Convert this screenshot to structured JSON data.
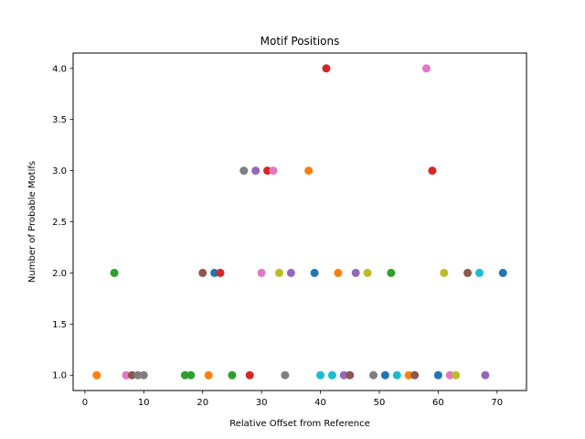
{
  "chart_data": {
    "type": "scatter",
    "title": "Motif Positions",
    "xlabel": "Relative Offset from Reference",
    "ylabel": "Number of Probable Motifs",
    "xlim": [
      -2,
      75
    ],
    "ylim": [
      0.85,
      4.15
    ],
    "xticks": [
      0,
      10,
      20,
      30,
      40,
      50,
      60,
      70
    ],
    "yticks": [
      1.0,
      1.5,
      2.0,
      2.5,
      3.0,
      3.5,
      4.0
    ],
    "ytick_labels": [
      "1.0",
      "1.5",
      "2.0",
      "2.5",
      "3.0",
      "3.5",
      "4.0"
    ],
    "grid": false,
    "legend": "none",
    "points": [
      {
        "x": 2,
        "y": 1,
        "color": "#ff7f0e"
      },
      {
        "x": 5,
        "y": 2,
        "color": "#2ca02c"
      },
      {
        "x": 7,
        "y": 1,
        "color": "#e377c2"
      },
      {
        "x": 8,
        "y": 1,
        "color": "#8c564b"
      },
      {
        "x": 9,
        "y": 1,
        "color": "#7f7f7f"
      },
      {
        "x": 10,
        "y": 1,
        "color": "#7f7f7f"
      },
      {
        "x": 17,
        "y": 1,
        "color": "#2ca02c"
      },
      {
        "x": 18,
        "y": 1,
        "color": "#2ca02c"
      },
      {
        "x": 20,
        "y": 2,
        "color": "#8c564b"
      },
      {
        "x": 21,
        "y": 1,
        "color": "#ff7f0e"
      },
      {
        "x": 22,
        "y": 2,
        "color": "#1f77b4"
      },
      {
        "x": 23,
        "y": 2,
        "color": "#d62728"
      },
      {
        "x": 25,
        "y": 1,
        "color": "#2ca02c"
      },
      {
        "x": 27,
        "y": 3,
        "color": "#7f7f7f"
      },
      {
        "x": 28,
        "y": 1,
        "color": "#d62728"
      },
      {
        "x": 29,
        "y": 3,
        "color": "#9467bd"
      },
      {
        "x": 30,
        "y": 2,
        "color": "#e377c2"
      },
      {
        "x": 31,
        "y": 3,
        "color": "#d62728"
      },
      {
        "x": 32,
        "y": 3,
        "color": "#e377c2"
      },
      {
        "x": 33,
        "y": 2,
        "color": "#bcbd22"
      },
      {
        "x": 34,
        "y": 1,
        "color": "#7f7f7f"
      },
      {
        "x": 35,
        "y": 2,
        "color": "#9467bd"
      },
      {
        "x": 38,
        "y": 3,
        "color": "#ff7f0e"
      },
      {
        "x": 39,
        "y": 2,
        "color": "#1f77b4"
      },
      {
        "x": 40,
        "y": 1,
        "color": "#17becf"
      },
      {
        "x": 41,
        "y": 4,
        "color": "#d62728"
      },
      {
        "x": 42,
        "y": 1,
        "color": "#17becf"
      },
      {
        "x": 43,
        "y": 2,
        "color": "#ff7f0e"
      },
      {
        "x": 44,
        "y": 1,
        "color": "#9467bd"
      },
      {
        "x": 45,
        "y": 1,
        "color": "#8c564b"
      },
      {
        "x": 46,
        "y": 2,
        "color": "#9467bd"
      },
      {
        "x": 48,
        "y": 2,
        "color": "#bcbd22"
      },
      {
        "x": 49,
        "y": 1,
        "color": "#7f7f7f"
      },
      {
        "x": 51,
        "y": 1,
        "color": "#1f77b4"
      },
      {
        "x": 52,
        "y": 2,
        "color": "#2ca02c"
      },
      {
        "x": 53,
        "y": 1,
        "color": "#17becf"
      },
      {
        "x": 55,
        "y": 1,
        "color": "#ff7f0e"
      },
      {
        "x": 56,
        "y": 1,
        "color": "#8c564b"
      },
      {
        "x": 58,
        "y": 4,
        "color": "#e377c2"
      },
      {
        "x": 59,
        "y": 3,
        "color": "#d62728"
      },
      {
        "x": 60,
        "y": 1,
        "color": "#1f77b4"
      },
      {
        "x": 61,
        "y": 2,
        "color": "#bcbd22"
      },
      {
        "x": 62,
        "y": 1,
        "color": "#e377c2"
      },
      {
        "x": 63,
        "y": 1,
        "color": "#bcbd22"
      },
      {
        "x": 65,
        "y": 2,
        "color": "#8c564b"
      },
      {
        "x": 67,
        "y": 2,
        "color": "#17becf"
      },
      {
        "x": 68,
        "y": 1,
        "color": "#9467bd"
      },
      {
        "x": 71,
        "y": 2,
        "color": "#1f77b4"
      }
    ]
  }
}
